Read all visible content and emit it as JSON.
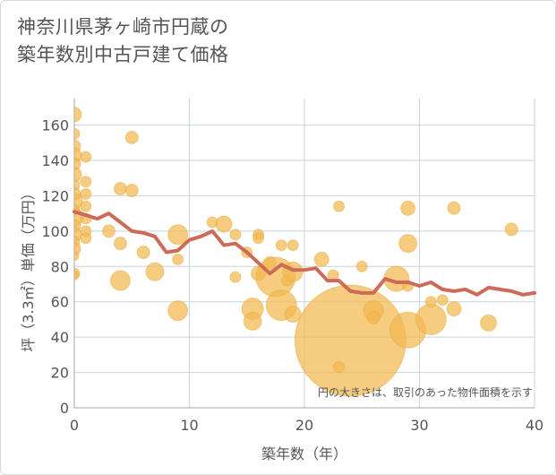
{
  "page": {
    "title_line1": "神奈川県茅ヶ崎市円蔵の",
    "title_line2": "築年数別中古戸建て価格"
  },
  "colors": {
    "bubble": "#f2b950",
    "bubble_stroke": "#e8a93a",
    "line": "#cd6a58",
    "grid": "#c9d3de",
    "plot_bg": "#ffffff"
  },
  "chart_data": {
    "type": "scatter",
    "title": "神奈川県茅ヶ崎市円蔵の築年数別中古戸建て価格",
    "xlabel": "築年数（年）",
    "ylabel": "坪（3.3㎡）単価（万円）",
    "xlim": [
      0,
      40
    ],
    "ylim": [
      0,
      175
    ],
    "xticks": [
      0,
      10,
      20,
      30,
      40
    ],
    "yticks": [
      0,
      20,
      40,
      60,
      80,
      100,
      120,
      140,
      160
    ],
    "grid": true,
    "note": "円の大きさは、取引のあった物件面積を示す",
    "bubbles": [
      {
        "x": 0,
        "y": 166,
        "s": 8
      },
      {
        "x": 0,
        "y": 155,
        "s": 6
      },
      {
        "x": 0,
        "y": 148,
        "s": 7
      },
      {
        "x": 0,
        "y": 143,
        "s": 8
      },
      {
        "x": 0,
        "y": 138,
        "s": 7
      },
      {
        "x": 0,
        "y": 132,
        "s": 8
      },
      {
        "x": 0,
        "y": 126,
        "s": 6
      },
      {
        "x": 0,
        "y": 121,
        "s": 7
      },
      {
        "x": 0,
        "y": 117,
        "s": 9
      },
      {
        "x": 0,
        "y": 112,
        "s": 6
      },
      {
        "x": 0,
        "y": 108,
        "s": 10
      },
      {
        "x": 0,
        "y": 103,
        "s": 7
      },
      {
        "x": 0,
        "y": 98,
        "s": 8
      },
      {
        "x": 0,
        "y": 94,
        "s": 6
      },
      {
        "x": 0,
        "y": 90,
        "s": 7
      },
      {
        "x": 0,
        "y": 86,
        "s": 5
      },
      {
        "x": 0,
        "y": 76,
        "s": 6
      },
      {
        "x": 0,
        "y": 75,
        "s": 5
      },
      {
        "x": 1,
        "y": 142,
        "s": 6
      },
      {
        "x": 1,
        "y": 128,
        "s": 6
      },
      {
        "x": 1,
        "y": 121,
        "s": 6
      },
      {
        "x": 1,
        "y": 114,
        "s": 6
      },
      {
        "x": 1,
        "y": 107,
        "s": 6
      },
      {
        "x": 1,
        "y": 100,
        "s": 6
      },
      {
        "x": 1,
        "y": 96,
        "s": 6
      },
      {
        "x": 3,
        "y": 100,
        "s": 7
      },
      {
        "x": 4,
        "y": 124,
        "s": 7
      },
      {
        "x": 4,
        "y": 93,
        "s": 7
      },
      {
        "x": 4,
        "y": 72,
        "s": 11
      },
      {
        "x": 5,
        "y": 153,
        "s": 7
      },
      {
        "x": 5,
        "y": 123,
        "s": 7
      },
      {
        "x": 6,
        "y": 88,
        "s": 7
      },
      {
        "x": 7,
        "y": 77,
        "s": 10
      },
      {
        "x": 9,
        "y": 98,
        "s": 11
      },
      {
        "x": 9,
        "y": 84,
        "s": 6
      },
      {
        "x": 9,
        "y": 55,
        "s": 11
      },
      {
        "x": 12,
        "y": 105,
        "s": 6
      },
      {
        "x": 13,
        "y": 104,
        "s": 9
      },
      {
        "x": 14,
        "y": 98,
        "s": 6
      },
      {
        "x": 14,
        "y": 74,
        "s": 6
      },
      {
        "x": 15,
        "y": 88,
        "s": 6
      },
      {
        "x": 16,
        "y": 98,
        "s": 6
      },
      {
        "x": 16,
        "y": 96,
        "s": 6
      },
      {
        "x": 16,
        "y": 76,
        "s": 8
      },
      {
        "x": 15.5,
        "y": 56,
        "s": 12
      },
      {
        "x": 15.5,
        "y": 49,
        "s": 10
      },
      {
        "x": 17,
        "y": 82,
        "s": 7
      },
      {
        "x": 17.5,
        "y": 74,
        "s": 22
      },
      {
        "x": 18,
        "y": 92,
        "s": 6
      },
      {
        "x": 18,
        "y": 58,
        "s": 17
      },
      {
        "x": 18.5,
        "y": 72,
        "s": 6
      },
      {
        "x": 19,
        "y": 92,
        "s": 6
      },
      {
        "x": 19,
        "y": 77,
        "s": 11
      },
      {
        "x": 19,
        "y": 53,
        "s": 9
      },
      {
        "x": 21.5,
        "y": 84,
        "s": 8
      },
      {
        "x": 22.5,
        "y": 75,
        "s": 6
      },
      {
        "x": 23,
        "y": 114,
        "s": 6
      },
      {
        "x": 24,
        "y": 38,
        "s": 62
      },
      {
        "x": 23,
        "y": 23,
        "s": 6
      },
      {
        "x": 25,
        "y": 80,
        "s": 6
      },
      {
        "x": 26,
        "y": 55,
        "s": 11
      },
      {
        "x": 26,
        "y": 51,
        "s": 7
      },
      {
        "x": 28,
        "y": 73,
        "s": 14
      },
      {
        "x": 29,
        "y": 113,
        "s": 8
      },
      {
        "x": 29,
        "y": 93,
        "s": 10
      },
      {
        "x": 29,
        "y": 69,
        "s": 6
      },
      {
        "x": 29,
        "y": 44,
        "s": 20
      },
      {
        "x": 31,
        "y": 50,
        "s": 17
      },
      {
        "x": 31,
        "y": 60,
        "s": 6
      },
      {
        "x": 32,
        "y": 61,
        "s": 6
      },
      {
        "x": 33,
        "y": 113,
        "s": 7
      },
      {
        "x": 33,
        "y": 56,
        "s": 8
      },
      {
        "x": 36,
        "y": 48,
        "s": 9
      },
      {
        "x": 38,
        "y": 101,
        "s": 7
      }
    ],
    "trend": [
      {
        "x": 0,
        "y": 111
      },
      {
        "x": 1,
        "y": 109
      },
      {
        "x": 2,
        "y": 107
      },
      {
        "x": 3,
        "y": 110
      },
      {
        "x": 4,
        "y": 105
      },
      {
        "x": 5,
        "y": 100
      },
      {
        "x": 6,
        "y": 99
      },
      {
        "x": 7,
        "y": 97
      },
      {
        "x": 8,
        "y": 88
      },
      {
        "x": 9,
        "y": 89
      },
      {
        "x": 10,
        "y": 95
      },
      {
        "x": 11,
        "y": 97
      },
      {
        "x": 12,
        "y": 100
      },
      {
        "x": 13,
        "y": 92
      },
      {
        "x": 14,
        "y": 93
      },
      {
        "x": 15,
        "y": 88
      },
      {
        "x": 16,
        "y": 82
      },
      {
        "x": 17,
        "y": 76
      },
      {
        "x": 18,
        "y": 81
      },
      {
        "x": 19,
        "y": 78
      },
      {
        "x": 20,
        "y": 78
      },
      {
        "x": 21,
        "y": 79
      },
      {
        "x": 22,
        "y": 72
      },
      {
        "x": 23,
        "y": 72
      },
      {
        "x": 24,
        "y": 66
      },
      {
        "x": 25,
        "y": 65
      },
      {
        "x": 26,
        "y": 65
      },
      {
        "x": 27,
        "y": 73
      },
      {
        "x": 28,
        "y": 71
      },
      {
        "x": 29,
        "y": 71
      },
      {
        "x": 30,
        "y": 69
      },
      {
        "x": 31,
        "y": 71
      },
      {
        "x": 32,
        "y": 67
      },
      {
        "x": 33,
        "y": 66
      },
      {
        "x": 34,
        "y": 67
      },
      {
        "x": 35,
        "y": 64
      },
      {
        "x": 36,
        "y": 68
      },
      {
        "x": 37,
        "y": 67
      },
      {
        "x": 38,
        "y": 66
      },
      {
        "x": 39,
        "y": 64
      },
      {
        "x": 40,
        "y": 65
      }
    ]
  }
}
